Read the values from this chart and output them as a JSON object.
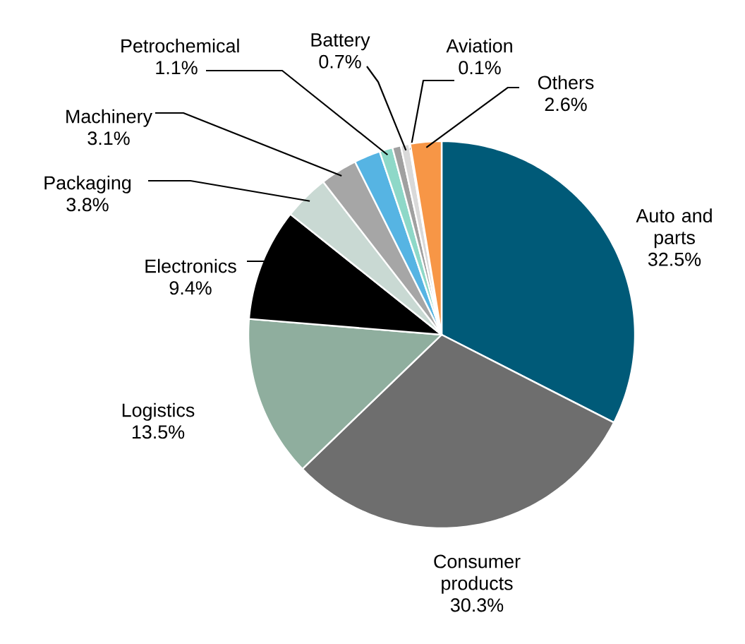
{
  "chart_data": {
    "type": "pie",
    "categories": [
      "Auto and parts",
      "Consumer products",
      "Logistics",
      "Electronics",
      "Packaging",
      "Machinery",
      null,
      "Petrochemical",
      null,
      "Battery",
      "Aviation",
      "Others"
    ],
    "values": [
      32.5,
      30.3,
      13.5,
      9.4,
      3.8,
      3.1,
      2.2,
      1.1,
      0.7,
      0.7,
      0.1,
      2.6
    ],
    "value_labels": [
      "32.5%",
      "30.3%",
      "13.5%",
      "9.4%",
      "3.8%",
      "3.1%",
      null,
      "1.1%",
      null,
      "0.7%",
      "0.1%",
      "2.6%"
    ],
    "colors": [
      "#005a78",
      "#6e6e6e",
      "#8fae9e",
      "#000000",
      "#c9d9d3",
      "#a6a6a6",
      "#56b4e3",
      "#8ed8c8",
      "#a0a0a0",
      "#d9d9d9",
      "#f2f2f2",
      "#f79646"
    ]
  }
}
